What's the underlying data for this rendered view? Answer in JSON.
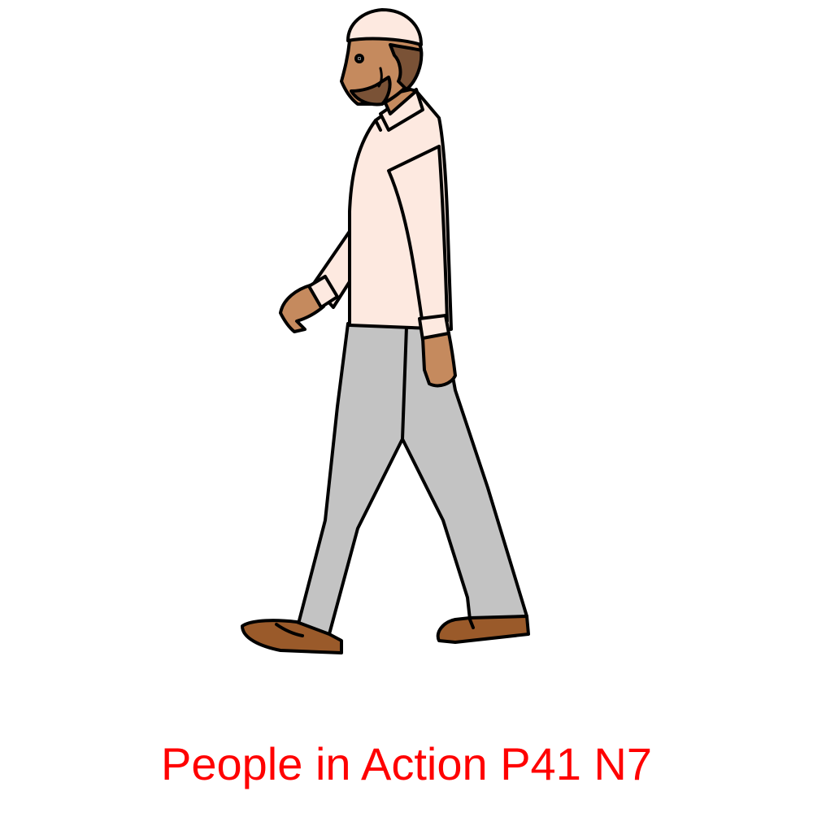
{
  "caption": {
    "text": "People in Action P41 N7",
    "color": "#ff0000"
  },
  "illustration": {
    "subject": "walking-man-icon",
    "colors": {
      "outline": "#000000",
      "skin": "#c58a5e",
      "shirt": "#fde9e0",
      "cap": "#fde9e0",
      "trousers": "#c3c3c3",
      "shoes": "#9a5a2a",
      "hair": "#7a5236"
    }
  }
}
